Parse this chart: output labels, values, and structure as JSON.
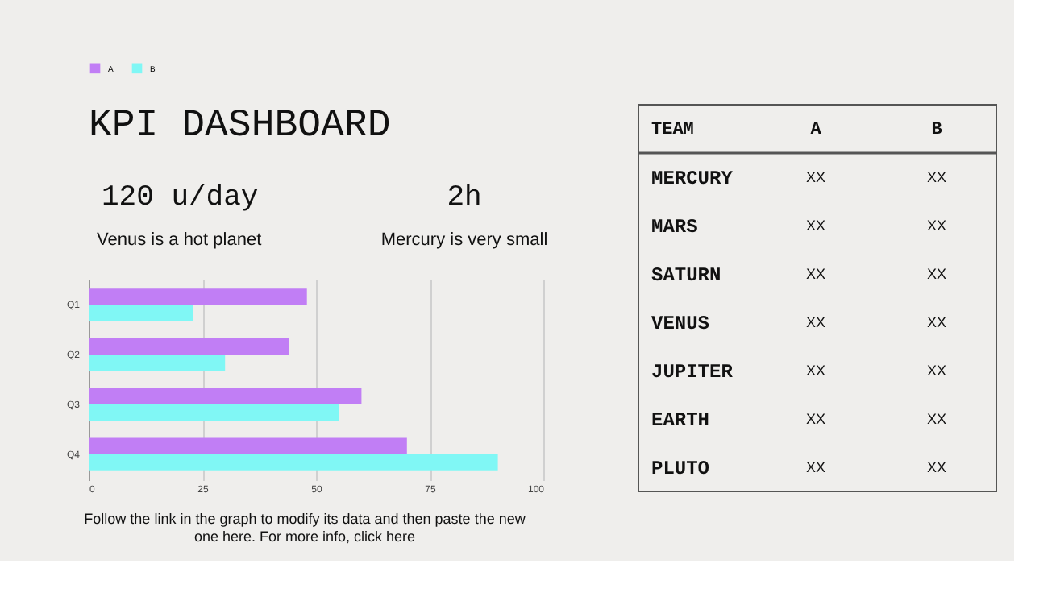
{
  "chart_data": [
    {
      "type": "other",
      "title": "KPI DASHBOARD",
      "annotations": [
        "120 u/day",
        "Venus is a hot planet",
        "2h",
        "Mercury is very small"
      ]
    },
    {
      "type": "bar",
      "orientation": "horizontal",
      "categories": [
        "Q1",
        "Q2",
        "Q3",
        "Q4"
      ],
      "series": [
        {
          "name": "A",
          "color": "#c17ef5",
          "values": [
            48,
            44,
            60,
            70
          ]
        },
        {
          "name": "B",
          "color": "#80f7f5",
          "values": [
            23,
            30,
            55,
            90
          ]
        }
      ],
      "xlim": [
        0,
        100
      ],
      "xticks": [
        0,
        25,
        50,
        75,
        100
      ],
      "grid": "x",
      "legend": "top",
      "annotations": [
        "Follow the link in the graph to modify its data and then paste the new",
        "one here. For more info, click here"
      ]
    },
    {
      "type": "other",
      "ylabel": "TEAM",
      "categories": [
        "A",
        "B"
      ],
      "y_categories": [
        "MERCURY",
        "MARS",
        "SATURN",
        "VENUS",
        "JUPITER",
        "EARTH",
        "PLUTO"
      ],
      "cell_labels": [
        [
          "XX",
          "XX"
        ],
        [
          "XX",
          "XX"
        ],
        [
          "XX",
          "XX"
        ],
        [
          "XX",
          "XX"
        ],
        [
          "XX",
          "XX"
        ],
        [
          "XX",
          "XX"
        ],
        [
          "XX",
          "XX"
        ]
      ]
    }
  ]
}
